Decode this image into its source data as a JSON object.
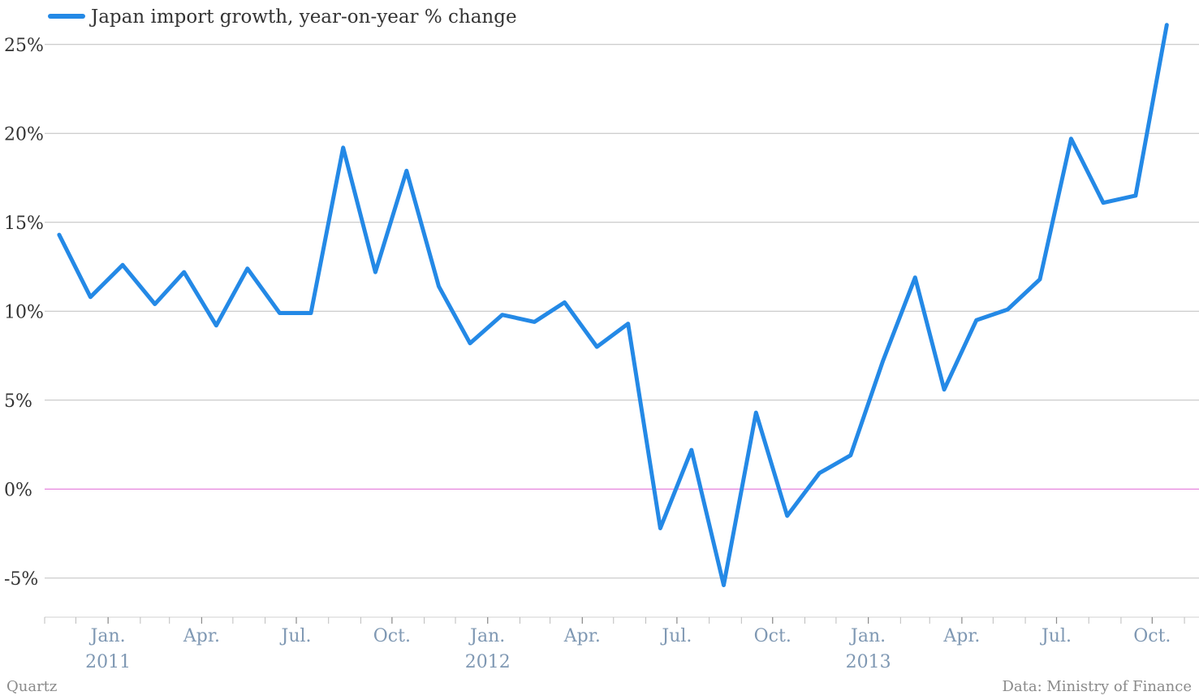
{
  "chart_data": {
    "type": "line",
    "title": "",
    "xlabel": "",
    "ylabel": "",
    "legend": "top-left",
    "grid": true,
    "ylim": [
      -7.2,
      27.5
    ],
    "xlim": [
      "2010-11-01",
      "2013-11-15"
    ],
    "zero_line_color": "#e066d6",
    "series": [
      {
        "name": "Japan import growth, year-on-year % change",
        "color": "#2489e6",
        "points": [
          [
            "2010-11-15",
            14.3
          ],
          [
            "2010-12-15",
            10.8
          ],
          [
            "2011-01-15",
            12.6
          ],
          [
            "2011-02-15",
            10.4
          ],
          [
            "2011-03-15",
            12.2
          ],
          [
            "2011-04-15",
            9.2
          ],
          [
            "2011-05-15",
            12.4
          ],
          [
            "2011-06-15",
            9.9
          ],
          [
            "2011-07-15",
            9.9
          ],
          [
            "2011-08-15",
            19.2
          ],
          [
            "2011-09-15",
            12.2
          ],
          [
            "2011-10-15",
            17.9
          ],
          [
            "2011-11-15",
            11.4
          ],
          [
            "2011-12-15",
            8.2
          ],
          [
            "2012-01-15",
            9.8
          ],
          [
            "2012-02-15",
            9.4
          ],
          [
            "2012-03-15",
            10.5
          ],
          [
            "2012-04-15",
            8.0
          ],
          [
            "2012-05-15",
            9.3
          ],
          [
            "2012-06-15",
            -2.2
          ],
          [
            "2012-07-15",
            2.2
          ],
          [
            "2012-08-15",
            -5.4
          ],
          [
            "2012-09-15",
            4.3
          ],
          [
            "2012-10-15",
            -1.5
          ],
          [
            "2012-11-15",
            0.9
          ],
          [
            "2012-12-15",
            1.9
          ],
          [
            "2013-01-15",
            7.2
          ],
          [
            "2013-02-15",
            11.9
          ],
          [
            "2013-03-15",
            5.6
          ],
          [
            "2013-04-15",
            9.5
          ],
          [
            "2013-05-15",
            10.1
          ],
          [
            "2013-06-15",
            11.8
          ],
          [
            "2013-07-15",
            19.7
          ],
          [
            "2013-08-15",
            16.1
          ],
          [
            "2013-09-15",
            16.5
          ],
          [
            "2013-10-15",
            26.1
          ]
        ]
      }
    ],
    "y_ticks": [
      {
        "value": 25,
        "label": "25%"
      },
      {
        "value": 20,
        "label": "20%"
      },
      {
        "value": 15,
        "label": "15%"
      },
      {
        "value": 10,
        "label": "10%"
      },
      {
        "value": 5,
        "label": "5%"
      },
      {
        "value": 0,
        "label": "0%"
      },
      {
        "value": -5,
        "label": "-5%"
      }
    ],
    "x_ticks": [
      {
        "date": "2011-01-01",
        "label": "Jan.",
        "year": "2011"
      },
      {
        "date": "2011-04-01",
        "label": "Apr."
      },
      {
        "date": "2011-07-01",
        "label": "Jul."
      },
      {
        "date": "2011-10-01",
        "label": "Oct."
      },
      {
        "date": "2012-01-01",
        "label": "Jan.",
        "year": "2012"
      },
      {
        "date": "2012-04-01",
        "label": "Apr."
      },
      {
        "date": "2012-07-01",
        "label": "Jul."
      },
      {
        "date": "2012-10-01",
        "label": "Oct."
      },
      {
        "date": "2013-01-01",
        "label": "Jan.",
        "year": "2013"
      },
      {
        "date": "2013-04-01",
        "label": "Apr."
      },
      {
        "date": "2013-07-01",
        "label": "Jul."
      },
      {
        "date": "2013-10-01",
        "label": "Oct."
      }
    ]
  },
  "footer": {
    "source_left": "Quartz",
    "source_right": "Data: Ministry of Finance"
  }
}
